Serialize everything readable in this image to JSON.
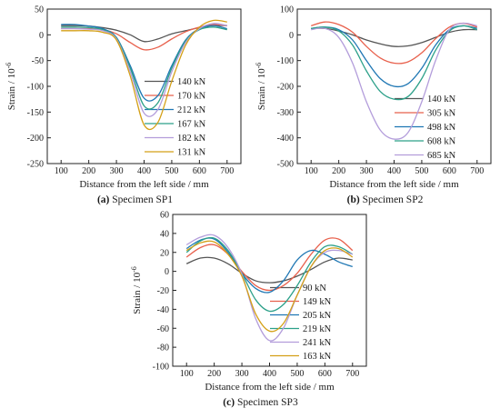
{
  "chart_data": [
    {
      "type": "line",
      "caption_label": "(a)",
      "caption_text": "Specimen SP1",
      "xlabel": "Distance from the left side / mm",
      "ylabel": "Strain / 10",
      "ylabel_exp": "-6",
      "xlim": [
        50,
        750
      ],
      "ylim": [
        -250,
        50
      ],
      "xticks": [
        100,
        200,
        300,
        400,
        500,
        600,
        700
      ],
      "yticks": [
        50,
        0,
        -50,
        -100,
        -150,
        -200,
        -250
      ],
      "legend_position": "center-right",
      "series": [
        {
          "name": "140 kN",
          "color": "#555555",
          "x": [
            100,
            150,
            200,
            250,
            300,
            350,
            400,
            450,
            500,
            550,
            600,
            650,
            700
          ],
          "y": [
            18,
            18,
            17,
            14,
            9,
            0,
            -13,
            -8,
            2,
            8,
            14,
            18,
            18
          ]
        },
        {
          "name": "170 kN",
          "color": "#e8604c",
          "x": [
            100,
            150,
            200,
            250,
            300,
            350,
            400,
            450,
            500,
            550,
            600,
            650,
            700
          ],
          "y": [
            12,
            12,
            12,
            10,
            2,
            -15,
            -29,
            -24,
            -8,
            6,
            15,
            20,
            18
          ]
        },
        {
          "name": "212 kN",
          "color": "#1f77b4",
          "x": [
            100,
            150,
            200,
            250,
            300,
            350,
            400,
            450,
            500,
            550,
            600,
            650,
            700
          ],
          "y": [
            20,
            20,
            17,
            12,
            -5,
            -60,
            -123,
            -118,
            -60,
            -10,
            12,
            18,
            12
          ]
        },
        {
          "name": "167 kN",
          "color": "#2ca089",
          "x": [
            100,
            150,
            200,
            250,
            300,
            350,
            400,
            450,
            500,
            550,
            600,
            650,
            700
          ],
          "y": [
            15,
            15,
            14,
            10,
            -6,
            -65,
            -138,
            -132,
            -65,
            -12,
            10,
            15,
            10
          ]
        },
        {
          "name": "182 kN",
          "color": "#b39ddb",
          "x": [
            100,
            150,
            200,
            250,
            300,
            350,
            400,
            450,
            500,
            550,
            600,
            650,
            700
          ],
          "y": [
            12,
            12,
            11,
            8,
            -8,
            -72,
            -152,
            -145,
            -72,
            -15,
            12,
            22,
            18
          ]
        },
        {
          "name": "131 kN",
          "color": "#d4a017",
          "x": [
            100,
            150,
            200,
            250,
            300,
            350,
            400,
            450,
            500,
            550,
            600,
            650,
            700
          ],
          "y": [
            8,
            8,
            8,
            5,
            -10,
            -80,
            -175,
            -170,
            -90,
            -20,
            15,
            28,
            25
          ]
        }
      ]
    },
    {
      "type": "line",
      "caption_label": "(b)",
      "caption_text": "Specimen SP2",
      "xlabel": "Distance from the left side / mm",
      "ylabel": "Strain / 10",
      "ylabel_exp": "-6",
      "xlim": [
        50,
        750
      ],
      "ylim": [
        -500,
        100
      ],
      "xticks": [
        100,
        200,
        300,
        400,
        500,
        600,
        700
      ],
      "yticks": [
        100,
        0,
        -100,
        -200,
        -300,
        -400,
        -500
      ],
      "legend_position": "center-right",
      "series": [
        {
          "name": "140 kN",
          "color": "#555555",
          "x": [
            100,
            150,
            200,
            250,
            300,
            350,
            400,
            450,
            500,
            550,
            600,
            650,
            700
          ],
          "y": [
            25,
            25,
            15,
            0,
            -20,
            -35,
            -45,
            -43,
            -30,
            -10,
            10,
            20,
            20
          ]
        },
        {
          "name": "305 kN",
          "color": "#e8604c",
          "x": [
            100,
            150,
            200,
            250,
            300,
            350,
            400,
            450,
            500,
            550,
            600,
            650,
            700
          ],
          "y": [
            35,
            50,
            40,
            10,
            -45,
            -90,
            -110,
            -105,
            -70,
            -15,
            30,
            45,
            30
          ]
        },
        {
          "name": "498 kN",
          "color": "#1f77b4",
          "x": [
            100,
            150,
            200,
            250,
            300,
            350,
            400,
            450,
            500,
            550,
            600,
            650,
            700
          ],
          "y": [
            25,
            30,
            20,
            -20,
            -100,
            -170,
            -200,
            -190,
            -130,
            -40,
            20,
            35,
            25
          ]
        },
        {
          "name": "608 kN",
          "color": "#2ca089",
          "x": [
            100,
            150,
            200,
            250,
            300,
            350,
            400,
            450,
            500,
            550,
            600,
            650,
            700
          ],
          "y": [
            25,
            30,
            15,
            -40,
            -140,
            -220,
            -250,
            -240,
            -170,
            -60,
            15,
            35,
            20
          ]
        },
        {
          "name": "685 kN",
          "color": "#b39ddb",
          "x": [
            100,
            150,
            200,
            250,
            300,
            350,
            400,
            450,
            500,
            550,
            600,
            650,
            700
          ],
          "y": [
            20,
            25,
            -10,
            -110,
            -260,
            -370,
            -405,
            -380,
            -260,
            -100,
            20,
            45,
            35
          ]
        }
      ]
    },
    {
      "type": "line",
      "caption_label": "(c)",
      "caption_text": "Specimen SP3",
      "xlabel": "Distance from the left side / mm",
      "ylabel": "Strain / 10",
      "ylabel_exp": "-6",
      "xlim": [
        50,
        750
      ],
      "ylim": [
        -100,
        60
      ],
      "xticks": [
        100,
        200,
        300,
        400,
        500,
        600,
        700
      ],
      "yticks": [
        60,
        40,
        20,
        0,
        -20,
        -40,
        -60,
        -80,
        -100
      ],
      "legend_position": "center-right",
      "series": [
        {
          "name": "90 kN",
          "color": "#555555",
          "x": [
            100,
            150,
            200,
            250,
            300,
            350,
            400,
            450,
            500,
            550,
            600,
            650,
            700
          ],
          "y": [
            8,
            14,
            14,
            8,
            -2,
            -10,
            -12,
            -10,
            -5,
            2,
            10,
            14,
            12
          ]
        },
        {
          "name": "149 kN",
          "color": "#e8604c",
          "x": [
            100,
            150,
            200,
            250,
            300,
            350,
            400,
            450,
            500,
            550,
            600,
            650,
            700
          ],
          "y": [
            15,
            25,
            28,
            18,
            0,
            -15,
            -20,
            -15,
            -2,
            18,
            33,
            34,
            22
          ]
        },
        {
          "name": "205 kN",
          "color": "#1f77b4",
          "x": [
            100,
            150,
            200,
            250,
            300,
            350,
            400,
            450,
            500,
            550,
            600,
            650,
            700
          ],
          "y": [
            24,
            33,
            34,
            20,
            -2,
            -18,
            -22,
            -10,
            12,
            22,
            18,
            10,
            5
          ]
        },
        {
          "name": "219 kN",
          "color": "#2ca089",
          "x": [
            100,
            150,
            200,
            250,
            300,
            350,
            400,
            450,
            500,
            550,
            600,
            650,
            700
          ],
          "y": [
            20,
            32,
            35,
            22,
            -2,
            -30,
            -42,
            -35,
            -15,
            10,
            26,
            26,
            18
          ]
        },
        {
          "name": "241 kN",
          "color": "#b39ddb",
          "x": [
            100,
            150,
            200,
            250,
            300,
            350,
            400,
            450,
            500,
            550,
            600,
            650,
            700
          ],
          "y": [
            28,
            36,
            38,
            25,
            -3,
            -50,
            -73,
            -60,
            -25,
            5,
            20,
            22,
            18
          ]
        },
        {
          "name": "163 kN",
          "color": "#d4a017",
          "x": [
            100,
            150,
            200,
            250,
            300,
            350,
            400,
            450,
            500,
            550,
            600,
            650,
            700
          ],
          "y": [
            22,
            30,
            31,
            18,
            -5,
            -45,
            -63,
            -55,
            -25,
            5,
            22,
            24,
            15
          ]
        }
      ]
    }
  ]
}
